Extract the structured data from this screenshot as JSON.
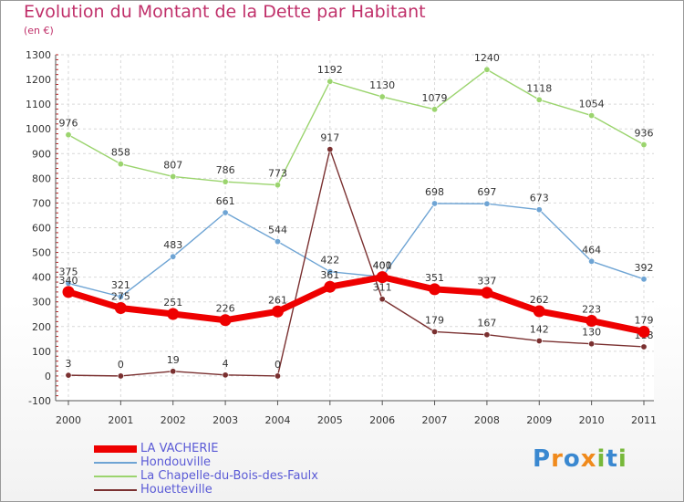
{
  "header": {
    "title": "Evolution du Montant de la Dette par Habitant",
    "subtitle": "(en €)"
  },
  "logo": {
    "letters": [
      "P",
      "r",
      "o",
      "x",
      "i",
      "t",
      "i"
    ],
    "colors": [
      "#3a88d0",
      "#f08a1c",
      "#3a88d0",
      "#f08a1c",
      "#77b83a",
      "#3a88d0",
      "#77b83a"
    ]
  },
  "chart_data": {
    "type": "line",
    "title": "Evolution du Montant de la Dette par Habitant",
    "subtitle": "(en €)",
    "xlabel": "",
    "ylabel": "",
    "x": [
      "2000",
      "2001",
      "2002",
      "2003",
      "2004",
      "2005",
      "2006",
      "2007",
      "2008",
      "2009",
      "2010",
      "2011"
    ],
    "yticks": [
      -100,
      0,
      100,
      200,
      300,
      400,
      500,
      600,
      700,
      800,
      900,
      1000,
      1100,
      1200,
      1300
    ],
    "ylim": [
      -100,
      1300
    ],
    "grid": true,
    "legend": "bottom-left",
    "series": [
      {
        "name": "LA VACHERIE",
        "color": "#ee0000",
        "values": [
          340,
          275,
          251,
          226,
          261,
          361,
          400,
          351,
          337,
          262,
          223,
          179
        ],
        "labels": [
          "340",
          "275",
          "251",
          "226",
          "261",
          "361",
          "400",
          "351",
          "337",
          "262",
          "223",
          "179"
        ]
      },
      {
        "name": "Hondouville",
        "color": "#6ea4d4",
        "values": [
          375,
          321,
          483,
          661,
          544,
          422,
          401,
          698,
          697,
          673,
          464,
          392
        ],
        "labels": [
          "375",
          "321",
          "483",
          "661",
          "544",
          "422",
          "401",
          "698",
          "697",
          "673",
          "464",
          "392"
        ]
      },
      {
        "name": "La Chapelle-du-Bois-des-Faulx",
        "color": "#9bd46e",
        "values": [
          976,
          858,
          807,
          786,
          773,
          1192,
          1130,
          1079,
          1240,
          1118,
          1054,
          936
        ],
        "labels": [
          "976",
          "858",
          "807",
          "786",
          "773",
          "1192",
          "1130",
          "1079",
          "1240",
          "1118",
          "1054",
          "936"
        ]
      },
      {
        "name": "Houetteville",
        "color": "#7a3030",
        "values": [
          3,
          0,
          19,
          4,
          0,
          917,
          311,
          179,
          167,
          142,
          130,
          118
        ],
        "labels": [
          "3",
          "0",
          "19",
          "4",
          "0",
          "917",
          "311",
          "179",
          "167",
          "142",
          "130",
          "118"
        ]
      }
    ]
  }
}
